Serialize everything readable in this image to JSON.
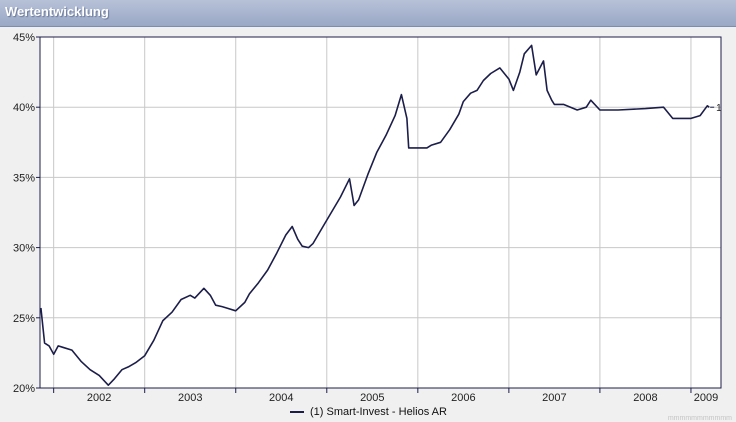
{
  "panel": {
    "title": "Wertentwicklung"
  },
  "chart_data": {
    "type": "line",
    "title": "",
    "xlabel": "",
    "ylabel": "",
    "ylim": [
      20,
      45
    ],
    "xlim": [
      2001.85,
      2009.33
    ],
    "y_ticks": [
      20,
      25,
      30,
      35,
      40,
      45
    ],
    "y_tick_labels": [
      "20%",
      "25%",
      "30%",
      "35%",
      "40%",
      "45%"
    ],
    "x_ticks": [
      2002,
      2003,
      2004,
      2005,
      2006,
      2007,
      2008,
      2009
    ],
    "x_tick_labels": [
      "2002",
      "2003",
      "2004",
      "2005",
      "2006",
      "2007",
      "2008",
      "2009"
    ],
    "grid": true,
    "legend_position": "bottom-center",
    "series": [
      {
        "name": "(1) Smart-Invest - Helios AR",
        "end_label": "1",
        "color": "#1c1e4a",
        "x": [
          2001.86,
          2001.9,
          2001.95,
          2002.0,
          2002.05,
          2002.1,
          2002.2,
          2002.3,
          2002.4,
          2002.5,
          2002.6,
          2002.66,
          2002.75,
          2002.82,
          2002.9,
          2003.0,
          2003.1,
          2003.2,
          2003.3,
          2003.4,
          2003.5,
          2003.55,
          2003.65,
          2003.72,
          2003.78,
          2003.85,
          2003.9,
          2004.0,
          2004.1,
          2004.15,
          2004.25,
          2004.35,
          2004.45,
          2004.55,
          2004.62,
          2004.68,
          2004.73,
          2004.8,
          2004.85,
          2004.95,
          2005.05,
          2005.15,
          2005.25,
          2005.3,
          2005.35,
          2005.45,
          2005.55,
          2005.65,
          2005.75,
          2005.82,
          2005.88,
          2005.9,
          2006.0,
          2006.1,
          2006.15,
          2006.25,
          2006.35,
          2006.45,
          2006.5,
          2006.58,
          2006.65,
          2006.72,
          2006.8,
          2006.9,
          2007.0,
          2007.05,
          2007.12,
          2007.17,
          2007.25,
          2007.3,
          2007.38,
          2007.42,
          2007.47,
          2007.5,
          2007.6,
          2007.75,
          2007.85,
          2007.9,
          2008.0,
          2008.2,
          2008.5,
          2008.7,
          2008.8,
          2008.95,
          2009.0,
          2009.1,
          2009.18,
          2009.2
        ],
        "values": [
          25.7,
          23.2,
          23.0,
          22.4,
          23.0,
          22.9,
          22.7,
          21.9,
          21.3,
          20.9,
          20.2,
          20.6,
          21.3,
          21.5,
          21.8,
          22.3,
          23.4,
          24.8,
          25.4,
          26.3,
          26.6,
          26.4,
          27.1,
          26.6,
          25.9,
          25.8,
          25.7,
          25.5,
          26.1,
          26.7,
          27.5,
          28.4,
          29.6,
          30.9,
          31.5,
          30.6,
          30.1,
          30.0,
          30.3,
          31.4,
          32.5,
          33.6,
          34.9,
          33.0,
          33.4,
          35.2,
          36.8,
          38.0,
          39.4,
          40.9,
          39.2,
          37.1,
          37.1,
          37.1,
          37.3,
          37.5,
          38.4,
          39.5,
          40.4,
          41.0,
          41.2,
          41.9,
          42.4,
          42.8,
          42.0,
          41.2,
          42.5,
          43.8,
          44.4,
          42.3,
          43.3,
          41.2,
          40.5,
          40.2,
          40.2,
          39.8,
          40.0,
          40.5,
          39.8,
          39.8,
          39.9,
          40.0,
          39.2,
          39.2,
          39.2,
          39.4,
          40.1,
          40.0
        ]
      }
    ]
  },
  "watermark": "mmmmmmmmmmm"
}
